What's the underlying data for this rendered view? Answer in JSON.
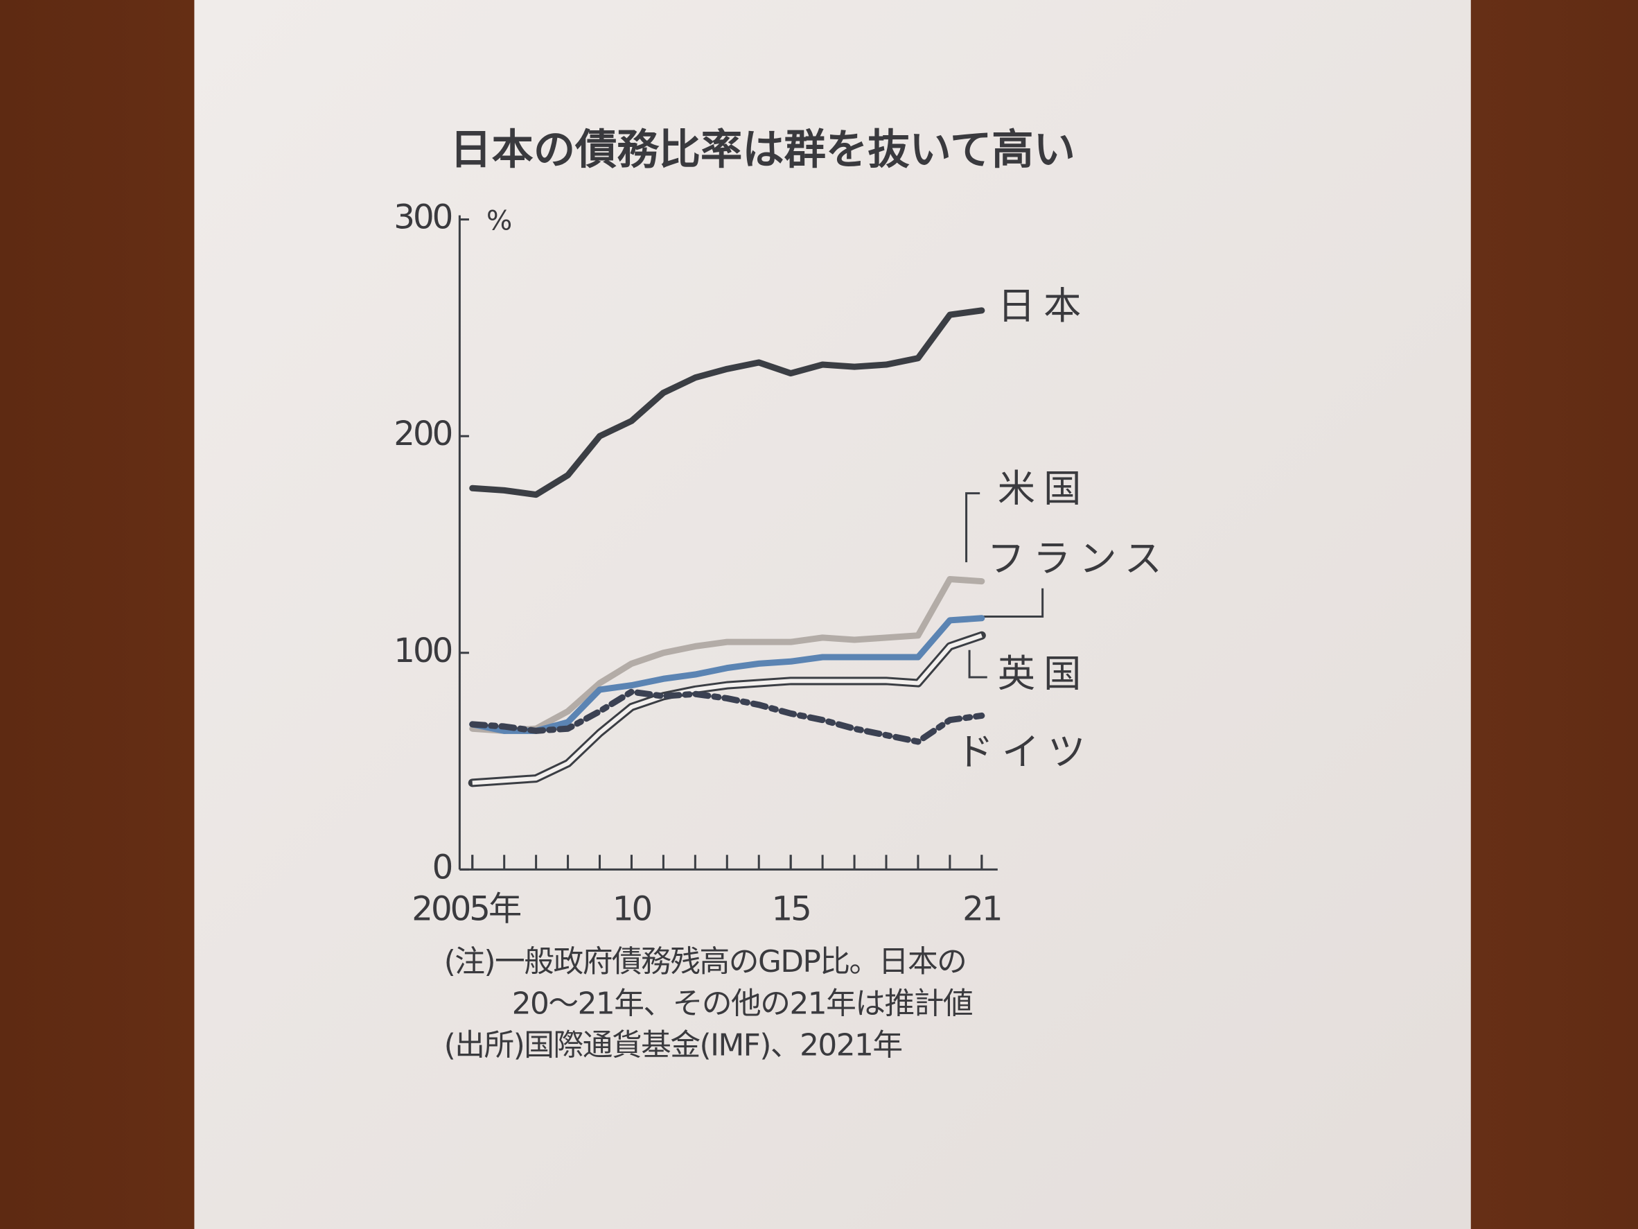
{
  "chart_data": {
    "type": "line",
    "title": "日本の債務比率は群を抜いて高い",
    "y_unit": "%",
    "x": [
      2005,
      2006,
      2007,
      2008,
      2009,
      2010,
      2011,
      2012,
      2013,
      2014,
      2015,
      2016,
      2017,
      2018,
      2019,
      2020,
      2021
    ],
    "xlim": [
      2004.6,
      2021.5
    ],
    "xticks": [
      {
        "value": 2005,
        "label": "2005年"
      },
      {
        "value": 2010,
        "label": "10"
      },
      {
        "value": 2015,
        "label": "15"
      },
      {
        "value": 2021,
        "label": "21"
      }
    ],
    "ylim": [
      0,
      300
    ],
    "yticks": [
      0,
      100,
      200,
      300
    ],
    "series": [
      {
        "name": "日本",
        "color": "#3b3e44",
        "style": "solid",
        "values": [
          176,
          175,
          173,
          182,
          200,
          207,
          220,
          227,
          231,
          234,
          229,
          233,
          232,
          233,
          236,
          256,
          258
        ]
      },
      {
        "name": "米国",
        "color": "#b3aca7",
        "style": "solid",
        "values": [
          65,
          64,
          65,
          73,
          86,
          95,
          100,
          103,
          105,
          105,
          105,
          107,
          106,
          107,
          108,
          134,
          133
        ]
      },
      {
        "name": "フランス",
        "color": "#5b84b3",
        "style": "solid",
        "values": [
          67,
          64,
          64,
          68,
          83,
          85,
          88,
          90,
          93,
          95,
          96,
          98,
          98,
          98,
          98,
          115,
          116
        ]
      },
      {
        "name": "英国",
        "color": "#3b3e44",
        "style": "outline",
        "values": [
          40,
          41,
          42,
          49,
          63,
          75,
          80,
          83,
          85,
          86,
          87,
          87,
          87,
          87,
          86,
          103,
          108
        ]
      },
      {
        "name": "ドイツ",
        "color": "#3b4152",
        "style": "dashed",
        "values": [
          67,
          66,
          64,
          65,
          73,
          82,
          80,
          81,
          79,
          76,
          72,
          69,
          65,
          62,
          59,
          69,
          71
        ]
      }
    ],
    "notes": [
      "(注)一般政府債務残高のGDP比。日本の",
      "20～21年、その他の21年は推計値",
      "(出所)国際通貨基金(IMF)、2021年"
    ]
  }
}
